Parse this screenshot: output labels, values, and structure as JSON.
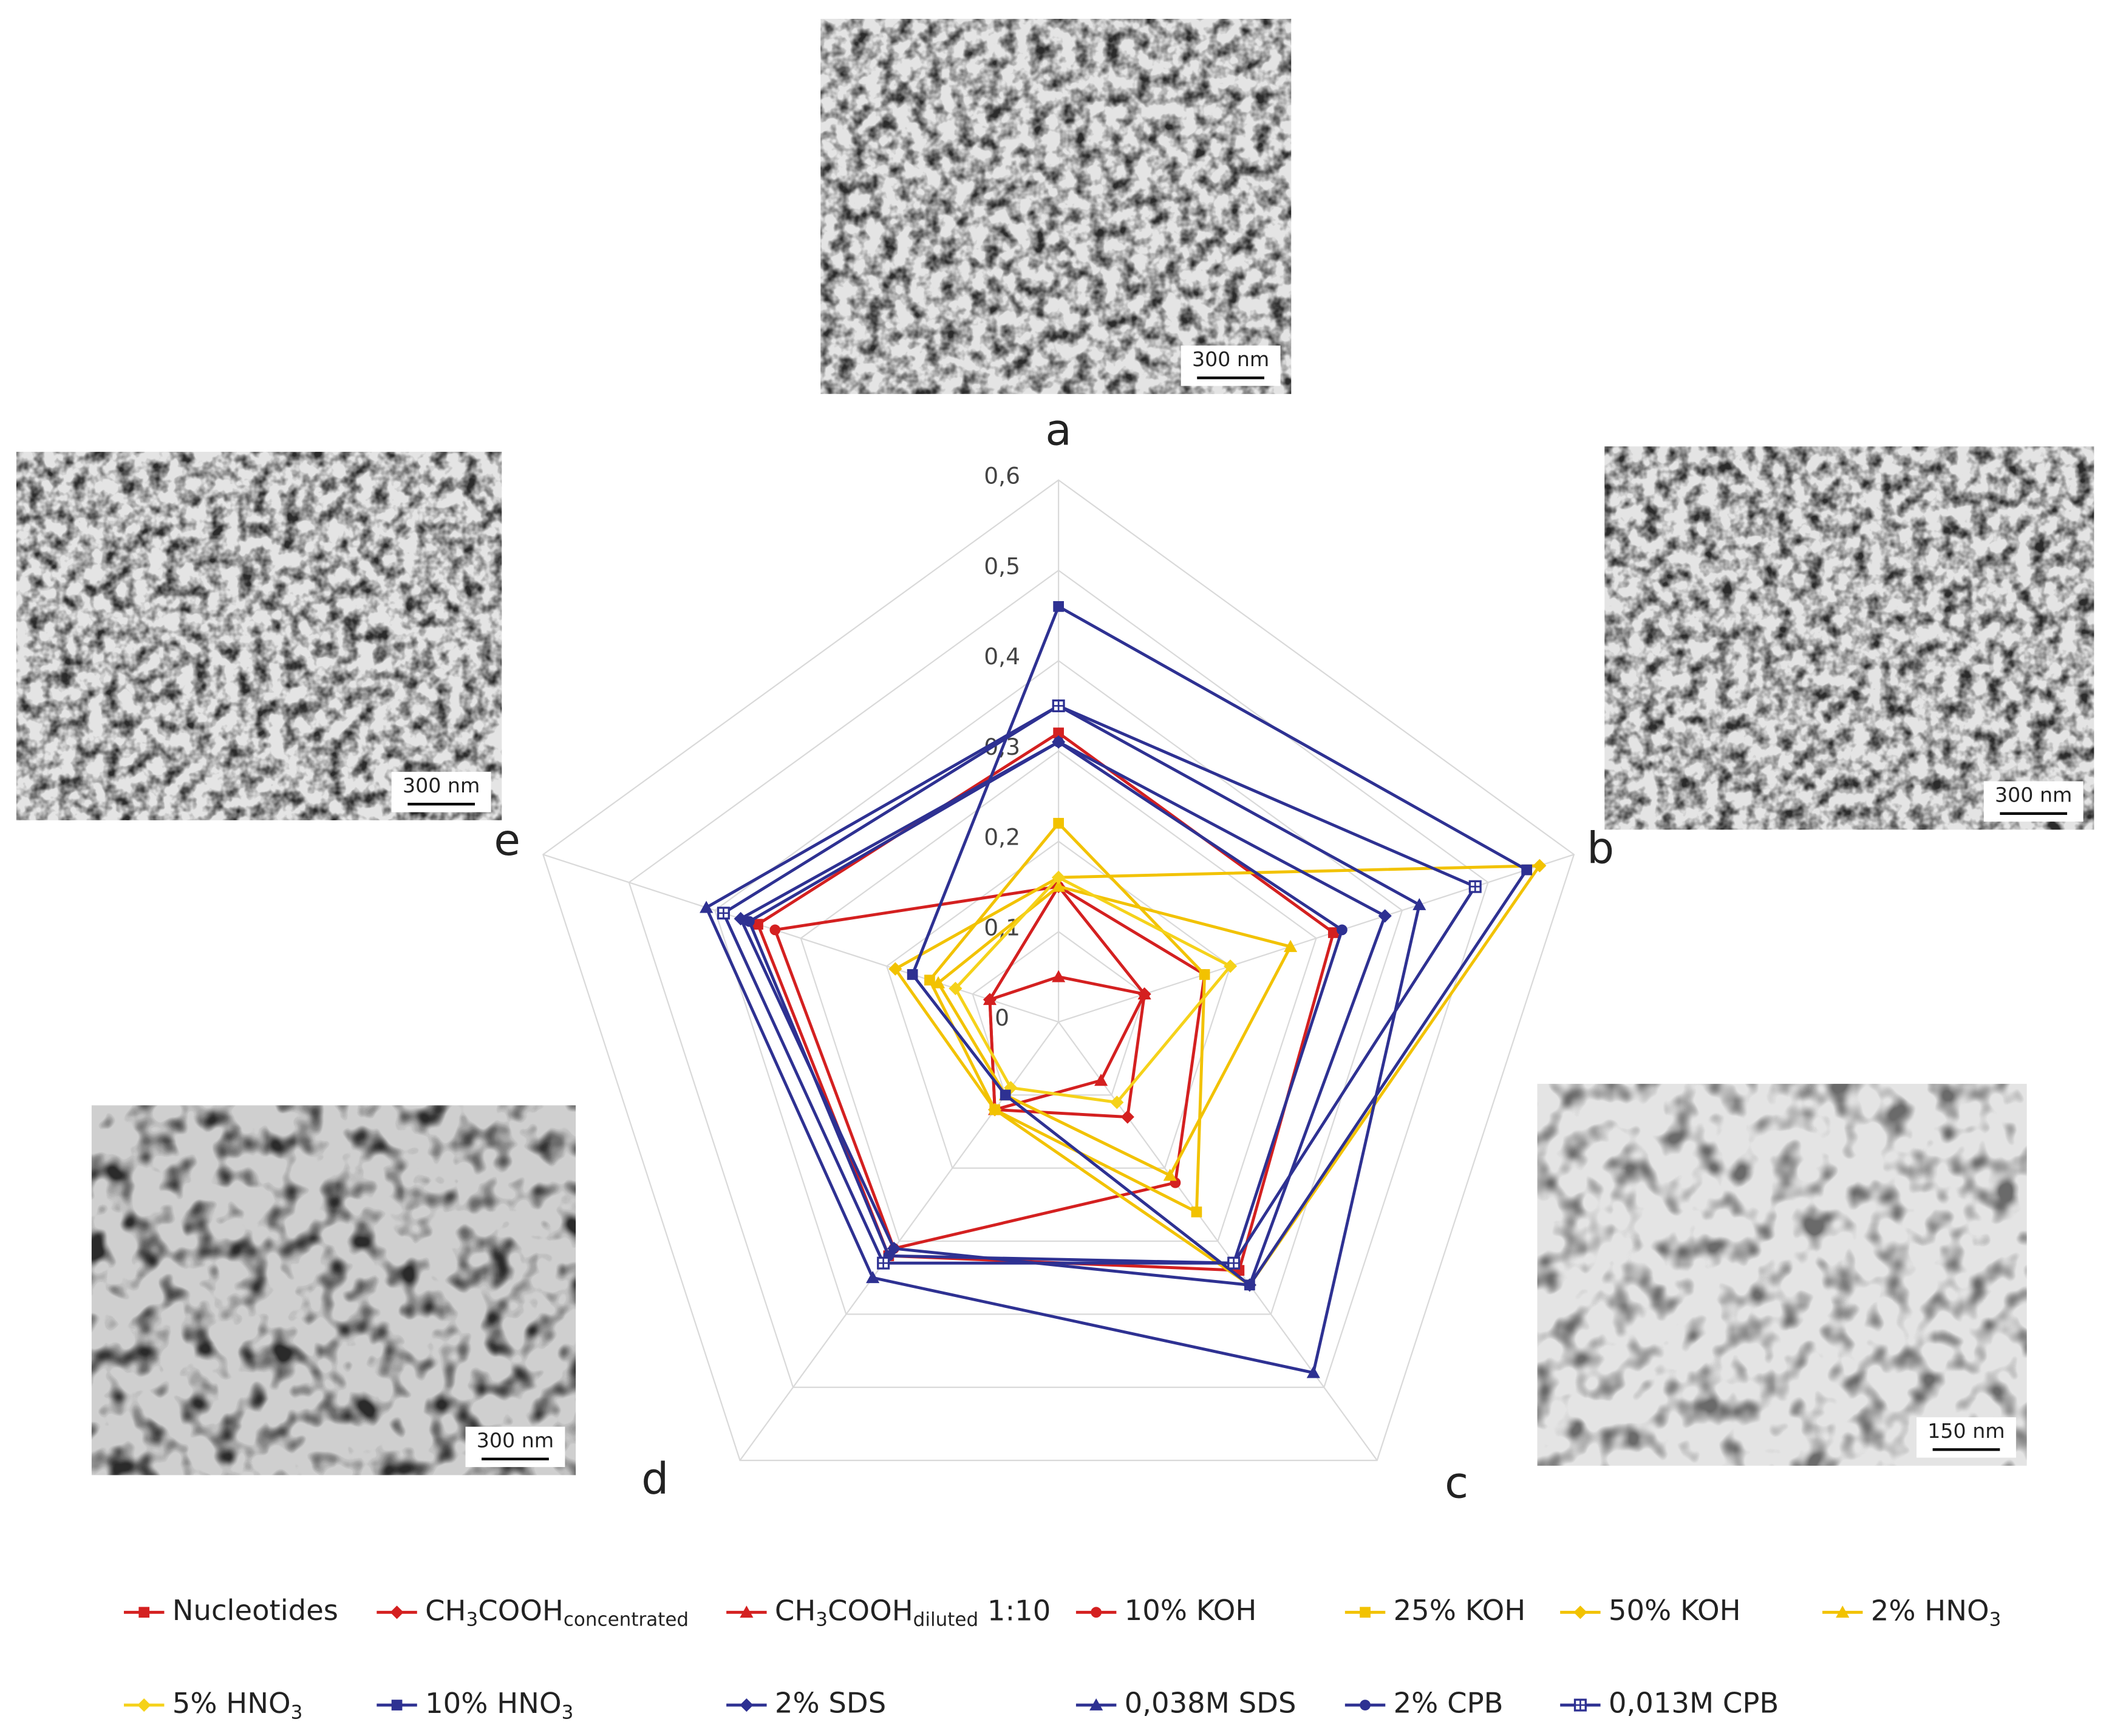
{
  "chart_data": {
    "type": "radar",
    "categories": [
      "a",
      "b",
      "c",
      "d",
      "e"
    ],
    "ylim": [
      0,
      0.6
    ],
    "yticks": [
      0,
      {
        "value": 0.1,
        "label": "0,1"
      },
      {
        "value": 0.2,
        "label": "0,2"
      },
      {
        "value": 0.3,
        "label": "0,3"
      },
      {
        "value": 0.4,
        "label": "0,4"
      },
      {
        "value": 0.5,
        "label": "0,5"
      },
      {
        "value": 0.6,
        "label": "0,6"
      }
    ],
    "grid": true,
    "legend": "bottom",
    "series": [
      {
        "name": "Nucleotides",
        "color": "#d42020",
        "marker": "square",
        "values": [
          0.32,
          0.32,
          0.34,
          0.32,
          0.35
        ]
      },
      {
        "name": [
          {
            "text": "CH"
          },
          {
            "text": "3",
            "sub": true
          },
          {
            "text": "COOH"
          },
          {
            "text": "concentrated",
            "sub": true
          }
        ],
        "color": "#d42020",
        "marker": "diamond",
        "values": [
          0.15,
          0.1,
          0.13,
          0.12,
          0.08
        ]
      },
      {
        "name": [
          {
            "text": "CH"
          },
          {
            "text": "3",
            "sub": true
          },
          {
            "text": "COOH"
          },
          {
            "text": "diluted",
            "sub": true
          },
          {
            "text": " 1:10"
          }
        ],
        "color": "#d42020",
        "marker": "triangle",
        "values": [
          0.05,
          0.1,
          0.08,
          0.12,
          0.08
        ]
      },
      {
        "name": "10% KOH",
        "color": "#d42020",
        "marker": "circle",
        "values": [
          0.15,
          0.17,
          0.22,
          0.31,
          0.33
        ]
      },
      {
        "name": "25% KOH",
        "color": "#f2c200",
        "marker": "square",
        "values": [
          0.22,
          0.17,
          0.26,
          0.12,
          0.15
        ]
      },
      {
        "name": "50% KOH",
        "color": "#f2c200",
        "marker": "diamond",
        "values": [
          0.16,
          0.56,
          0.36,
          0.12,
          0.19
        ]
      },
      {
        "name": [
          {
            "text": "2% HNO"
          },
          {
            "text": "3",
            "sub": true
          }
        ],
        "color": "#f2c200",
        "marker": "triangle",
        "values": [
          0.15,
          0.27,
          0.21,
          0.1,
          0.14
        ]
      },
      {
        "name": [
          {
            "text": "5% HNO"
          },
          {
            "text": "3",
            "sub": true
          }
        ],
        "color": "#f5d21a",
        "marker": "diamond",
        "values": [
          0.16,
          0.2,
          0.11,
          0.09,
          0.12
        ]
      },
      {
        "name": [
          {
            "text": "10% HNO"
          },
          {
            "text": "3",
            "sub": true
          }
        ],
        "color": "#2e3192",
        "marker": "square",
        "values": [
          0.46,
          0.545,
          0.36,
          0.1,
          0.17
        ]
      },
      {
        "name": "2% SDS",
        "color": "#2e3192",
        "marker": "diamond",
        "values": [
          0.31,
          0.38,
          0.36,
          0.31,
          0.37
        ]
      },
      {
        "name": "0,038M SDS",
        "color": "#2e3192",
        "marker": "triangle",
        "values": [
          0.35,
          0.42,
          0.48,
          0.35,
          0.41
        ]
      },
      {
        "name": "2% CPB",
        "color": "#2e3192",
        "marker": "circle",
        "values": [
          0.31,
          0.33,
          0.33,
          0.32,
          0.36
        ]
      },
      {
        "name": "0,013M CPB",
        "color": "#2e3192",
        "marker": "squareplus",
        "values": [
          0.35,
          0.485,
          0.33,
          0.33,
          0.39
        ]
      }
    ]
  },
  "images": [
    {
      "label": "a",
      "scale_bar": "300 nm"
    },
    {
      "label": "b",
      "scale_bar": "300 nm"
    },
    {
      "label": "c",
      "scale_bar": "150 nm"
    },
    {
      "label": "d",
      "scale_bar": "300 nm"
    },
    {
      "label": "e",
      "scale_bar": "300 nm"
    }
  ]
}
